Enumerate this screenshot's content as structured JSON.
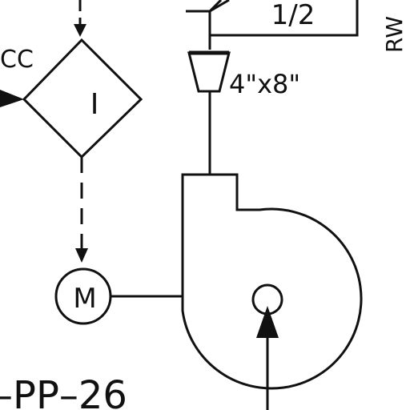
{
  "diagram": {
    "colors": {
      "background": "#ffffff",
      "ink": "#111111"
    },
    "labels": {
      "cc_tag": "CC",
      "interlock_symbol": "I",
      "motor_symbol": "M",
      "reducer_size": "4\"x8\"",
      "valve_fraction": "1/2",
      "right_edge_tag": "RW",
      "pump_tag": "–PP–26"
    }
  }
}
